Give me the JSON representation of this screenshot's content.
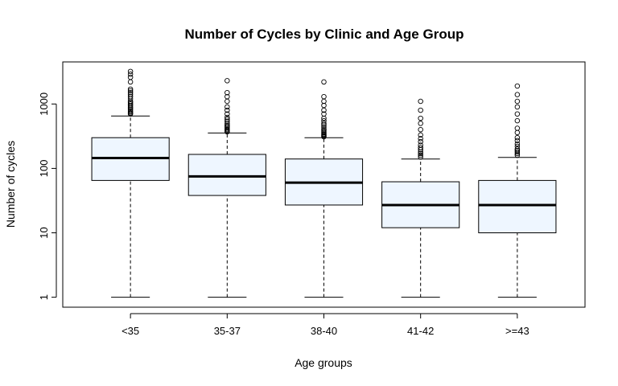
{
  "chart_data": {
    "type": "boxplot",
    "title": "Number of Cycles by Clinic and Age Group",
    "xlabel": "Age groups",
    "ylabel": "Number of cycles",
    "yscale": "log",
    "ylim": [
      0.7,
      4500
    ],
    "yticks": [
      1,
      10,
      100,
      1000
    ],
    "ytick_labels": [
      "1",
      "10",
      "100",
      "1000"
    ],
    "categories": [
      "<35",
      "35-37",
      "38-40",
      "41-42",
      ">=43"
    ],
    "box_fill": "#eef6ff",
    "boxes": [
      {
        "category": "<35",
        "whisker_low": 1,
        "q1": 65,
        "median": 145,
        "q3": 300,
        "whisker_high": 650,
        "outliers": [
          700,
          720,
          750,
          780,
          820,
          860,
          900,
          950,
          1000,
          1050,
          1100,
          1200,
          1300,
          1400,
          1500,
          1600,
          1700,
          2200,
          2600,
          2900,
          3200
        ]
      },
      {
        "category": "35-37",
        "whisker_low": 1,
        "q1": 38,
        "median": 75,
        "q3": 165,
        "whisker_high": 355,
        "outliers": [
          370,
          380,
          395,
          410,
          430,
          450,
          470,
          500,
          540,
          580,
          620,
          700,
          800,
          900,
          1100,
          1300,
          1500,
          2300
        ]
      },
      {
        "category": "38-40",
        "whisker_low": 1,
        "q1": 27,
        "median": 60,
        "q3": 140,
        "whisker_high": 300,
        "outliers": [
          310,
          320,
          330,
          340,
          355,
          370,
          390,
          410,
          440,
          470,
          500,
          550,
          600,
          700,
          800,
          950,
          1100,
          1300,
          2200
        ]
      },
      {
        "category": "41-42",
        "whisker_low": 1,
        "q1": 12,
        "median": 27,
        "q3": 62,
        "whisker_high": 140,
        "outliers": [
          150,
          160,
          170,
          180,
          195,
          210,
          230,
          260,
          290,
          330,
          400,
          500,
          600,
          800,
          1100
        ]
      },
      {
        "category": ">=43",
        "whisker_low": 1,
        "q1": 10,
        "median": 27,
        "q3": 65,
        "whisker_high": 148,
        "outliers": [
          160,
          170,
          180,
          190,
          200,
          220,
          240,
          270,
          300,
          360,
          420,
          550,
          700,
          900,
          1100,
          1400,
          1900
        ]
      }
    ]
  }
}
